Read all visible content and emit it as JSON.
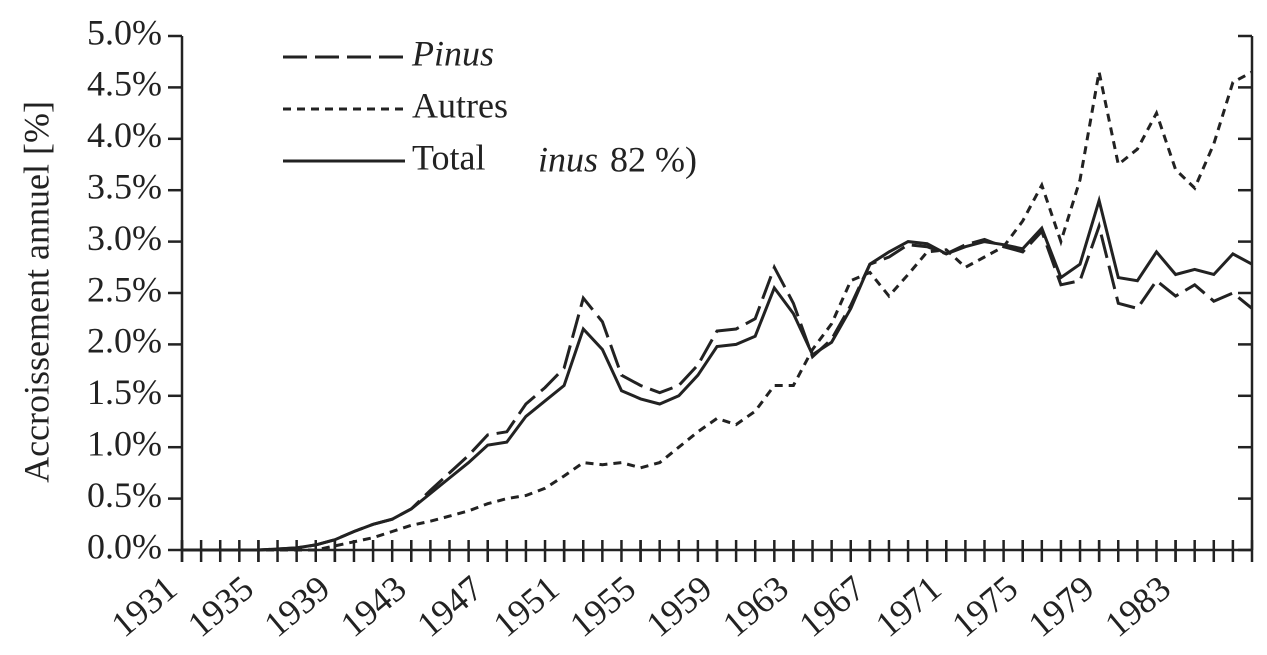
{
  "chart_data": {
    "type": "line",
    "y_label": "Accroissement annuel [%]",
    "annotations": [
      "inus",
      "82 %)"
    ],
    "x": [
      1931,
      1932,
      1933,
      1934,
      1935,
      1936,
      1937,
      1938,
      1939,
      1940,
      1941,
      1942,
      1943,
      1944,
      1945,
      1946,
      1947,
      1948,
      1949,
      1950,
      1951,
      1952,
      1953,
      1954,
      1955,
      1956,
      1957,
      1958,
      1959,
      1960,
      1961,
      1962,
      1963,
      1964,
      1965,
      1966,
      1967,
      1968,
      1969,
      1970,
      1971,
      1972,
      1973,
      1974,
      1975,
      1976,
      1977,
      1978,
      1979,
      1980,
      1981,
      1982,
      1983,
      1984,
      1985,
      1986,
      1987
    ],
    "xlim": [
      1931,
      1987
    ],
    "xticks": [
      1931,
      1935,
      1939,
      1943,
      1947,
      1951,
      1955,
      1959,
      1963,
      1967,
      1971,
      1975,
      1979,
      1983
    ],
    "ylim": [
      0,
      5
    ],
    "yticks": [
      {
        "value": 0,
        "label": "0.0%"
      },
      {
        "value": 0.5,
        "label": "0.5%"
      },
      {
        "value": 1,
        "label": "1.0%"
      },
      {
        "value": 1.5,
        "label": "1.5%"
      },
      {
        "value": 2,
        "label": "2.0%"
      },
      {
        "value": 2.5,
        "label": "2.5%"
      },
      {
        "value": 3,
        "label": "3.0%"
      },
      {
        "value": 3.5,
        "label": "3.5%"
      },
      {
        "value": 4,
        "label": "4.0%"
      },
      {
        "value": 4.5,
        "label": "4.5%"
      },
      {
        "value": 5,
        "label": "5.0%"
      }
    ],
    "series": [
      {
        "name": "Pinus",
        "color": "#222",
        "dash": "long",
        "values": [
          0,
          0,
          0,
          0,
          0,
          0.01,
          0.02,
          0.05,
          0.1,
          0.18,
          0.25,
          0.3,
          0.4,
          0.58,
          0.75,
          0.92,
          1.12,
          1.15,
          1.42,
          1.58,
          1.77,
          2.45,
          2.22,
          1.7,
          1.6,
          1.53,
          1.6,
          1.8,
          2.13,
          2.15,
          2.25,
          2.75,
          2.4,
          1.88,
          2.05,
          2.38,
          2.78,
          2.85,
          2.97,
          2.95,
          2.88,
          2.97,
          3.02,
          2.95,
          2.9,
          3.1,
          2.58,
          2.62,
          3.15,
          2.4,
          2.35,
          2.62,
          2.47,
          2.58,
          2.42,
          2.5,
          2.35
        ]
      },
      {
        "name": "Autres",
        "color": "#222",
        "dash": "short",
        "values": [
          0,
          0,
          0,
          0,
          0,
          0,
          0,
          0,
          0.04,
          0.08,
          0.12,
          0.18,
          0.24,
          0.28,
          0.33,
          0.38,
          0.45,
          0.5,
          0.53,
          0.6,
          0.72,
          0.85,
          0.83,
          0.85,
          0.8,
          0.85,
          1.0,
          1.15,
          1.28,
          1.22,
          1.35,
          1.6,
          1.6,
          1.95,
          2.2,
          2.62,
          2.7,
          2.47,
          2.68,
          2.9,
          2.92,
          2.75,
          2.85,
          2.95,
          3.2,
          3.55,
          3.0,
          3.6,
          4.65,
          3.75,
          3.9,
          4.25,
          3.7,
          3.52,
          3.95,
          4.55,
          4.65
        ]
      },
      {
        "name": "Total",
        "color": "#222",
        "dash": "solid",
        "values": [
          0,
          0,
          0,
          0,
          0,
          0.01,
          0.02,
          0.05,
          0.1,
          0.18,
          0.25,
          0.3,
          0.4,
          0.55,
          0.7,
          0.85,
          1.02,
          1.05,
          1.3,
          1.45,
          1.6,
          2.15,
          1.95,
          1.55,
          1.47,
          1.42,
          1.5,
          1.7,
          1.98,
          2.0,
          2.08,
          2.55,
          2.3,
          1.9,
          2.02,
          2.35,
          2.78,
          2.9,
          3.0,
          2.98,
          2.88,
          2.95,
          3.0,
          2.97,
          2.93,
          3.13,
          2.65,
          2.78,
          3.4,
          2.65,
          2.62,
          2.9,
          2.68,
          2.73,
          2.68,
          2.88,
          2.78
        ]
      }
    ]
  }
}
